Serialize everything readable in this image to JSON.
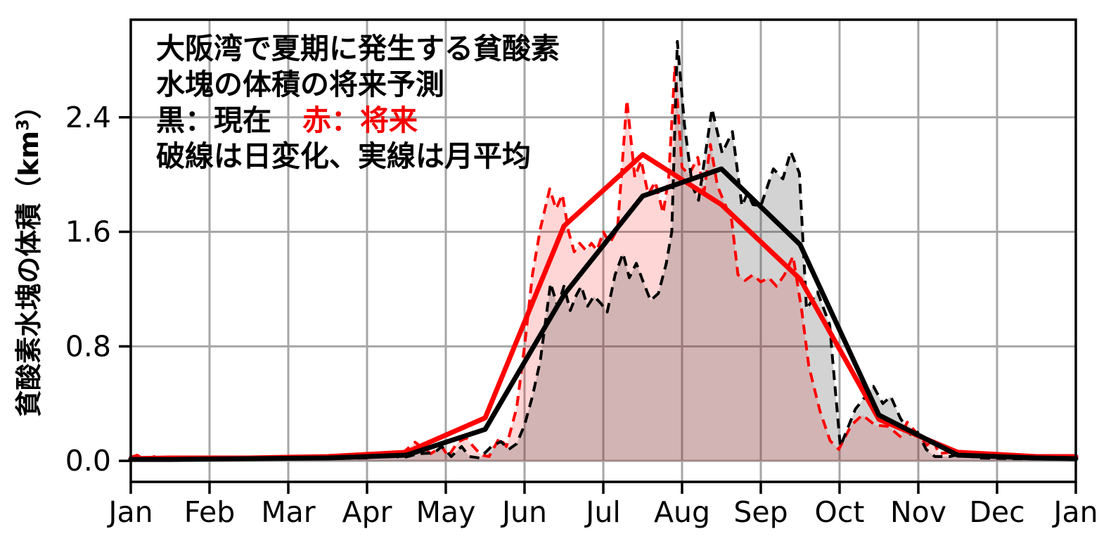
{
  "figure": {
    "annotation": {
      "line1": "大阪湾で夏期に発生する貧酸素",
      "line2": "水塊の体積の将来予測",
      "line3_black": "黒：現在",
      "line3_red": "赤：将来",
      "line4": "破線は日変化、実線は月平均"
    },
    "colors": {
      "current": "#000000",
      "future": "#ff0000",
      "grid": "#a6a6a6",
      "frame": "#000000",
      "fill_future": "rgba(255,0,0,0.16)",
      "fill_current": "rgba(70,70,70,0.24)"
    }
  },
  "chart_data": {
    "type": "line",
    "title": "大阪湾で夏期に発生する貧酸素水塊の体積の将来予測",
    "subtitle": "黒：現在 赤：将来 / 破線は日変化、実線は月平均",
    "ylabel_prefix": "貧酸素水塊の体積（km",
    "ylabel_sup": "3",
    "ylabel_suffix": "）",
    "xlabel": "",
    "x_tick_labels": [
      "Jan",
      "Feb",
      "Mar",
      "Apr",
      "May",
      "Jun",
      "Jul",
      "Aug",
      "Sep",
      "Oct",
      "Nov",
      "Dec",
      "Jan"
    ],
    "y_ticks": [
      0.0,
      0.8,
      1.6,
      2.4
    ],
    "y_tick_labels": [
      "0.0",
      "0.8",
      "1.6",
      "2.4"
    ],
    "ylim": [
      -0.147,
      3.082
    ],
    "xlim_months": [
      0,
      12
    ],
    "grid": true,
    "legend_position": "none",
    "series": [
      {
        "id": "future-daily",
        "name": "将来（日変化）",
        "style": "dashed",
        "color": "#ff0000",
        "fill": "rgba(255,0,0,0.16)",
        "points": [
          [
            0,
            0.025
          ],
          [
            0.08,
            0.04
          ],
          [
            0.18,
            0.01
          ],
          [
            0.3,
            0.03
          ],
          [
            0.45,
            0.015
          ],
          [
            0.7,
            0.02
          ],
          [
            1,
            0.015
          ],
          [
            1.4,
            0.02
          ],
          [
            1.8,
            0.015
          ],
          [
            2.2,
            0.02
          ],
          [
            2.6,
            0.02
          ],
          [
            3,
            0.025
          ],
          [
            3.2,
            0.05
          ],
          [
            3.4,
            0.03
          ],
          [
            3.61,
            0.13
          ],
          [
            3.81,
            0.05
          ],
          [
            3.95,
            0.1
          ],
          [
            4.03,
            0.03
          ],
          [
            4.15,
            0.13
          ],
          [
            4.26,
            0.16
          ],
          [
            4.35,
            0.1
          ],
          [
            4.45,
            0.04
          ],
          [
            4.55,
            0.03
          ],
          [
            4.68,
            0.16
          ],
          [
            4.77,
            0.1
          ],
          [
            4.9,
            0.37
          ],
          [
            5,
            0.8
          ],
          [
            5.1,
            1.3
          ],
          [
            5.2,
            1.62
          ],
          [
            5.32,
            1.9
          ],
          [
            5.4,
            1.76
          ],
          [
            5.48,
            1.86
          ],
          [
            5.56,
            1.6
          ],
          [
            5.63,
            1.46
          ],
          [
            5.7,
            1.52
          ],
          [
            5.78,
            1.47
          ],
          [
            5.85,
            1.52
          ],
          [
            5.92,
            1.47
          ],
          [
            6,
            1.6
          ],
          [
            6.08,
            1.52
          ],
          [
            6.18,
            1.62
          ],
          [
            6.3,
            2.52
          ],
          [
            6.4,
            1.98
          ],
          [
            6.48,
            2.1
          ],
          [
            6.57,
            1.86
          ],
          [
            6.66,
            1.95
          ],
          [
            6.76,
            1.73
          ],
          [
            6.83,
            1.98
          ],
          [
            6.91,
            2.76
          ],
          [
            7,
            2.05
          ],
          [
            7.09,
            2.0
          ],
          [
            7.2,
            2.12
          ],
          [
            7.28,
            1.88
          ],
          [
            7.36,
            2.21
          ],
          [
            7.45,
            1.92
          ],
          [
            7.63,
            1.68
          ],
          [
            7.71,
            1.3
          ],
          [
            7.8,
            1.26
          ],
          [
            7.9,
            1.3
          ],
          [
            8,
            1.25
          ],
          [
            8.1,
            1.28
          ],
          [
            8.2,
            1.22
          ],
          [
            8.3,
            1.3
          ],
          [
            8.41,
            1.43
          ],
          [
            8.52,
            1.05
          ],
          [
            8.61,
            0.66
          ],
          [
            8.75,
            0.35
          ],
          [
            8.88,
            0.14
          ],
          [
            8.99,
            0.08
          ],
          [
            9.15,
            0.25
          ],
          [
            9.29,
            0.32
          ],
          [
            9.45,
            0.25
          ],
          [
            9.62,
            0.24
          ],
          [
            9.77,
            0.17
          ],
          [
            9.86,
            0.27
          ],
          [
            10,
            0.18
          ],
          [
            10.11,
            0.11
          ],
          [
            10.19,
            0.15
          ],
          [
            10.26,
            0.05
          ],
          [
            10.4,
            0.06
          ],
          [
            10.55,
            0.04
          ],
          [
            10.75,
            0.05
          ],
          [
            11,
            0.03
          ],
          [
            11.4,
            0.025
          ],
          [
            12,
            0.025
          ]
        ]
      },
      {
        "id": "current-daily",
        "name": "現在（日変化）",
        "style": "dashed",
        "color": "#000000",
        "fill": "rgba(70,70,70,0.24)",
        "points": [
          [
            0,
            0.01
          ],
          [
            0.5,
            0.01
          ],
          [
            1,
            0.01
          ],
          [
            1.5,
            0.012
          ],
          [
            2,
            0.012
          ],
          [
            2.5,
            0.015
          ],
          [
            3,
            0.02
          ],
          [
            3.25,
            0.045
          ],
          [
            3.45,
            0.02
          ],
          [
            3.65,
            0.05
          ],
          [
            3.85,
            0.055
          ],
          [
            3.95,
            0.1
          ],
          [
            4.07,
            0.03
          ],
          [
            4.2,
            0.1
          ],
          [
            4.3,
            0.03
          ],
          [
            4.43,
            0.02
          ],
          [
            4.58,
            0.1
          ],
          [
            4.7,
            0.135
          ],
          [
            4.8,
            0.08
          ],
          [
            4.9,
            0.12
          ],
          [
            5,
            0.25
          ],
          [
            5.1,
            0.45
          ],
          [
            5.2,
            0.7
          ],
          [
            5.33,
            1.24
          ],
          [
            5.42,
            1.08
          ],
          [
            5.5,
            1.22
          ],
          [
            5.58,
            1.05
          ],
          [
            5.66,
            1.16
          ],
          [
            5.72,
            1.22
          ],
          [
            5.8,
            1.08
          ],
          [
            5.88,
            1.15
          ],
          [
            5.97,
            1.1
          ],
          [
            6.05,
            1.04
          ],
          [
            6.15,
            1.3
          ],
          [
            6.25,
            1.45
          ],
          [
            6.33,
            1.28
          ],
          [
            6.42,
            1.38
          ],
          [
            6.5,
            1.26
          ],
          [
            6.6,
            1.12
          ],
          [
            6.7,
            1.17
          ],
          [
            6.8,
            1.38
          ],
          [
            6.87,
            1.6
          ],
          [
            6.94,
            2.93
          ],
          [
            7.03,
            2.35
          ],
          [
            7.13,
            1.92
          ],
          [
            7.21,
            1.82
          ],
          [
            7.38,
            2.46
          ],
          [
            7.51,
            2.15
          ],
          [
            7.64,
            2.3
          ],
          [
            7.76,
            1.78
          ],
          [
            7.83,
            1.87
          ],
          [
            7.9,
            1.79
          ],
          [
            8,
            1.78
          ],
          [
            8.16,
            2.04
          ],
          [
            8.28,
            1.97
          ],
          [
            8.38,
            2.16
          ],
          [
            8.49,
            2.01
          ],
          [
            8.58,
            1.06
          ],
          [
            8.72,
            1.18
          ],
          [
            8.875,
            0.95
          ],
          [
            8.91,
            0.72
          ],
          [
            9.01,
            0.1
          ],
          [
            9.2,
            0.36
          ],
          [
            9.43,
            0.52
          ],
          [
            9.55,
            0.4
          ],
          [
            9.65,
            0.45
          ],
          [
            9.77,
            0.3
          ],
          [
            9.93,
            0.16
          ],
          [
            9.99,
            0.2
          ],
          [
            10.1,
            0.08
          ],
          [
            10.21,
            0.03
          ],
          [
            10.4,
            0.03
          ],
          [
            10.55,
            0.05
          ],
          [
            10.75,
            0.02
          ],
          [
            11.2,
            0.015
          ],
          [
            11.6,
            0.012
          ],
          [
            12,
            0.01
          ]
        ]
      },
      {
        "id": "future-monthly",
        "name": "将来（月平均）",
        "style": "solid",
        "color": "#ff0000",
        "fill": null,
        "points": [
          [
            0,
            0.015
          ],
          [
            0.5,
            0.02
          ],
          [
            1.5,
            0.02
          ],
          [
            2.5,
            0.03
          ],
          [
            3.5,
            0.06
          ],
          [
            4.5,
            0.3
          ],
          [
            5.5,
            1.64
          ],
          [
            6.5,
            2.14
          ],
          [
            7.5,
            1.79
          ],
          [
            8.5,
            1.27
          ],
          [
            9.5,
            0.29
          ],
          [
            10.5,
            0.06
          ],
          [
            11.5,
            0.03
          ],
          [
            12,
            0.03
          ]
        ]
      },
      {
        "id": "current-monthly",
        "name": "現在（月平均）",
        "style": "solid",
        "color": "#000000",
        "fill": null,
        "points": [
          [
            0,
            0.01
          ],
          [
            0.5,
            0.01
          ],
          [
            1.5,
            0.015
          ],
          [
            2.5,
            0.02
          ],
          [
            3.5,
            0.04
          ],
          [
            4.5,
            0.22
          ],
          [
            5.5,
            1.16
          ],
          [
            6.5,
            1.85
          ],
          [
            7.5,
            2.04
          ],
          [
            8.5,
            1.51
          ],
          [
            9.5,
            0.32
          ],
          [
            10.5,
            0.04
          ],
          [
            11.5,
            0.02
          ],
          [
            12,
            0.015
          ]
        ]
      }
    ]
  }
}
